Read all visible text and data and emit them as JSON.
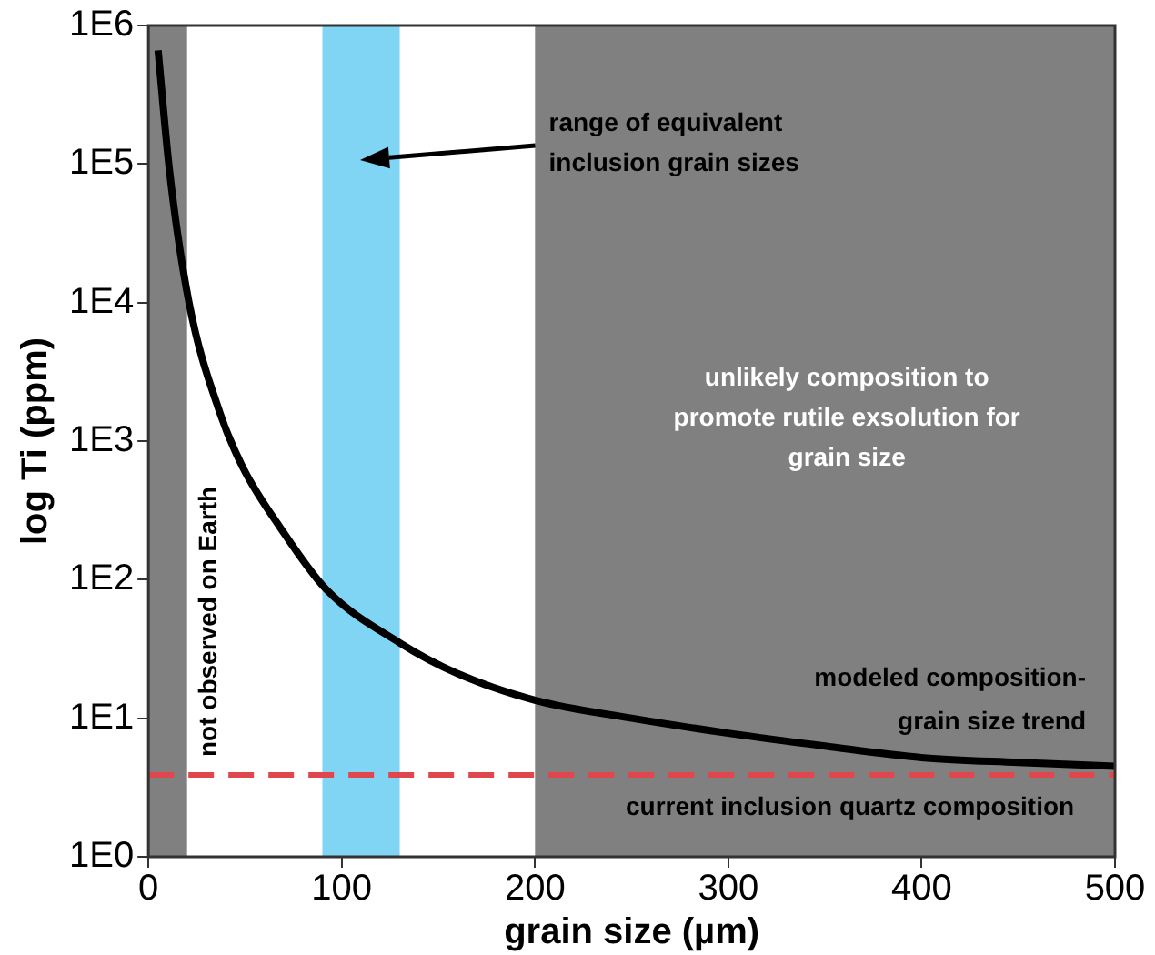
{
  "chart_data": {
    "type": "line",
    "xlabel": "grain size (µm)",
    "ylabel": "log Ti (ppm)",
    "x": [
      5,
      11,
      21,
      37,
      49,
      68,
      92,
      130,
      160,
      200,
      250,
      300,
      350,
      400,
      450,
      500
    ],
    "series": [
      {
        "name": "modeled composition-grain size trend",
        "color": "#000000",
        "values": [
          660000,
          87000,
          10000,
          1600,
          640,
          240,
          85,
          35,
          21,
          13.5,
          10,
          7.8,
          6.3,
          5.2,
          4.8,
          4.5
        ]
      }
    ],
    "xlim": [
      0,
      500
    ],
    "xticks": [
      0,
      100,
      200,
      300,
      400,
      500
    ],
    "ylim": [
      1,
      1000000
    ],
    "yticks": [
      {
        "value": 1,
        "label": "1E0"
      },
      {
        "value": 10,
        "label": "1E1"
      },
      {
        "value": 100,
        "label": "1E2"
      },
      {
        "value": 1000,
        "label": "1E3"
      },
      {
        "value": 10000,
        "label": "1E4"
      },
      {
        "value": 100000,
        "label": "1E5"
      },
      {
        "value": 1000000,
        "label": "1E6"
      }
    ],
    "log": "y",
    "bands": [
      {
        "axis": "x",
        "from": 0,
        "to": 20,
        "label": "not observed on Earth",
        "color": "#808080"
      },
      {
        "axis": "x",
        "from": 90,
        "to": 130,
        "label": "range of equivalent inclusion grain sizes",
        "color": "#80d4f4"
      },
      {
        "axis": "x",
        "from": 200,
        "to": 500,
        "label": "unlikely composition to promote rutile exsolution for grain size",
        "color": "#808080"
      }
    ],
    "ref_lines": [
      {
        "axis": "y",
        "value": 3.9,
        "label": "current inclusion quartz composition",
        "color": "#e0474c",
        "line_style": "dashed"
      }
    ]
  }
}
